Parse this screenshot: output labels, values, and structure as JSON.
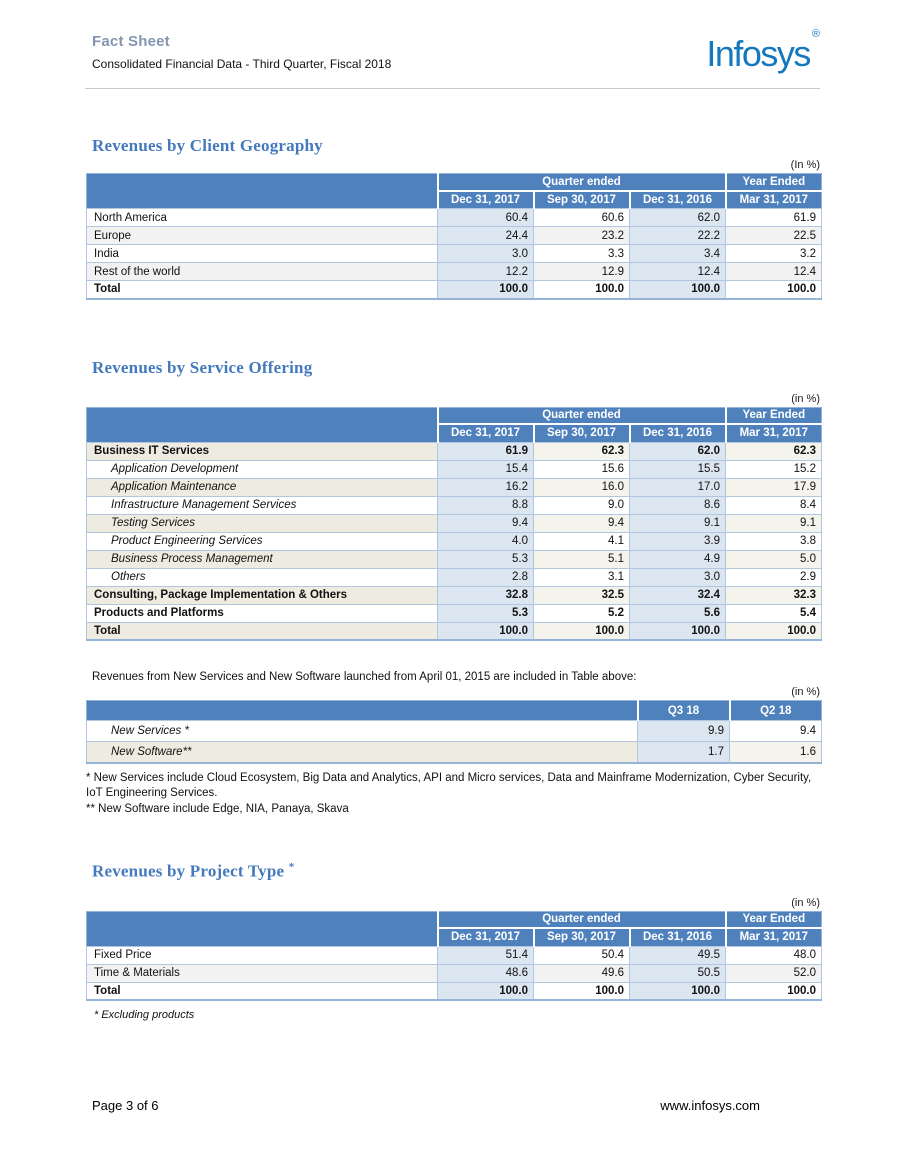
{
  "colors": {
    "header_band_blue": "#4f81bd",
    "shade_blue": "#dce6f1",
    "band_cream": "#eeece1",
    "band_gray": "#f2f2f2",
    "section_heading_blue": "#4479bd",
    "logo_blue": "#1478bf",
    "title_gray_blue": "#8496af"
  },
  "header": {
    "title": "Fact Sheet",
    "subtitle": "Consolidated Financial Data - Third Quarter, Fiscal 2018",
    "logo_text": "Infosys",
    "logo_reg": "®"
  },
  "footer": {
    "page_label": "Page 3 of 6",
    "website": "www.infosys.com"
  },
  "sections": [
    {
      "id": "client-geography",
      "heading": "Revenues by Client Geography",
      "unit_note": "(In %)",
      "band_style": "gray",
      "table": {
        "group_headers": [
          {
            "label": "Quarter ended",
            "span": 3
          },
          {
            "label": "Year Ended",
            "span": 1
          }
        ],
        "col_headers": [
          "Dec 31, 2017",
          "Sep 30, 2017",
          "Dec 31, 2016",
          "Mar 31, 2017"
        ],
        "rows": [
          {
            "label": "North America",
            "values": [
              "60.4",
              "60.6",
              "62.0",
              "61.9"
            ],
            "style": "plain",
            "band": false
          },
          {
            "label": "Europe",
            "values": [
              "24.4",
              "23.2",
              "22.2",
              "22.5"
            ],
            "style": "plain",
            "band": true
          },
          {
            "label": "India",
            "values": [
              "3.0",
              "3.3",
              "3.4",
              "3.2"
            ],
            "style": "plain",
            "band": false
          },
          {
            "label": "Rest of the world",
            "values": [
              "12.2",
              "12.9",
              "12.4",
              "12.4"
            ],
            "style": "plain",
            "band": true
          },
          {
            "label": "Total",
            "values": [
              "100.0",
              "100.0",
              "100.0",
              "100.0"
            ],
            "style": "bold",
            "band": false
          }
        ]
      }
    },
    {
      "id": "service-offering",
      "heading": "Revenues by Service Offering",
      "unit_note": "(in %)",
      "band_style": "cream",
      "table": {
        "group_headers": [
          {
            "label": "Quarter ended",
            "span": 3
          },
          {
            "label": "Year Ended",
            "span": 1
          }
        ],
        "col_headers": [
          "Dec 31, 2017",
          "Sep 30, 2017",
          "Dec 31, 2016",
          "Mar 31, 2017"
        ],
        "rows": [
          {
            "label": "Business IT Services",
            "values": [
              "61.9",
              "62.3",
              "62.0",
              "62.3"
            ],
            "style": "bold",
            "band": true
          },
          {
            "label": "Application Development",
            "values": [
              "15.4",
              "15.6",
              "15.5",
              "15.2"
            ],
            "style": "item",
            "band": false
          },
          {
            "label": "Application Maintenance",
            "values": [
              "16.2",
              "16.0",
              "17.0",
              "17.9"
            ],
            "style": "item",
            "band": true
          },
          {
            "label": "Infrastructure Management Services",
            "values": [
              "8.8",
              "9.0",
              "8.6",
              "8.4"
            ],
            "style": "item",
            "band": false
          },
          {
            "label": "Testing Services",
            "values": [
              "9.4",
              "9.4",
              "9.1",
              "9.1"
            ],
            "style": "item",
            "band": true
          },
          {
            "label": "Product Engineering Services",
            "values": [
              "4.0",
              "4.1",
              "3.9",
              "3.8"
            ],
            "style": "item",
            "band": false
          },
          {
            "label": "Business Process Management",
            "values": [
              "5.3",
              "5.1",
              "4.9",
              "5.0"
            ],
            "style": "item",
            "band": true
          },
          {
            "label": "Others",
            "values": [
              "2.8",
              "3.1",
              "3.0",
              "2.9"
            ],
            "style": "item",
            "band": false
          },
          {
            "label": "Consulting, Package Implementation & Others",
            "values": [
              "32.8",
              "32.5",
              "32.4",
              "32.3"
            ],
            "style": "bold",
            "band": true
          },
          {
            "label": "Products and Platforms",
            "values": [
              "5.3",
              "5.2",
              "5.6",
              "5.4"
            ],
            "style": "bold",
            "band": false
          },
          {
            "label": "Total",
            "values": [
              "100.0",
              "100.0",
              "100.0",
              "100.0"
            ],
            "style": "bold",
            "band": true
          }
        ]
      }
    },
    {
      "id": "new-services",
      "intro": "Revenues from New Services and New Software launched from April 01, 2015 are included in Table above:",
      "unit_note": "(in %)",
      "band_style": "cream",
      "table": {
        "col_headers": [
          "Q3 18",
          "Q2 18"
        ],
        "rows": [
          {
            "label": "New Services *",
            "values": [
              "9.9",
              "9.4"
            ],
            "style": "item",
            "band": false
          },
          {
            "label": "New Software**",
            "values": [
              "1.7",
              "1.6"
            ],
            "style": "item",
            "band": true
          }
        ]
      },
      "footnotes": [
        {
          "text": "* New Services include Cloud Ecosystem, Big Data and Analytics, API and Micro services, Data and Mainframe Modernization, Cyber Security, IoT Engineering Services.",
          "italic": false
        },
        {
          "text": "** New Software include Edge, NIA, Panaya, Skava",
          "italic": false
        }
      ]
    },
    {
      "id": "project-type",
      "heading": "Revenues by Project Type",
      "heading_sup": "*",
      "unit_note": "(in %)",
      "band_style": "gray",
      "table": {
        "group_headers": [
          {
            "label": "Quarter ended",
            "span": 3
          },
          {
            "label": "Year Ended",
            "span": 1
          }
        ],
        "col_headers": [
          "Dec 31, 2017",
          "Sep 30, 2017",
          "Dec 31, 2016",
          "Mar 31, 2017"
        ],
        "rows": [
          {
            "label": "Fixed Price",
            "values": [
              "51.4",
              "50.4",
              "49.5",
              "48.0"
            ],
            "style": "plain",
            "band": false
          },
          {
            "label": "Time & Materials",
            "values": [
              "48.6",
              "49.6",
              "50.5",
              "52.0"
            ],
            "style": "plain",
            "band": true
          },
          {
            "label": "Total",
            "values": [
              "100.0",
              "100.0",
              "100.0",
              "100.0"
            ],
            "style": "bold",
            "band": false
          }
        ]
      },
      "footnotes": [
        {
          "text": "*  Excluding products",
          "italic": true
        }
      ]
    }
  ]
}
